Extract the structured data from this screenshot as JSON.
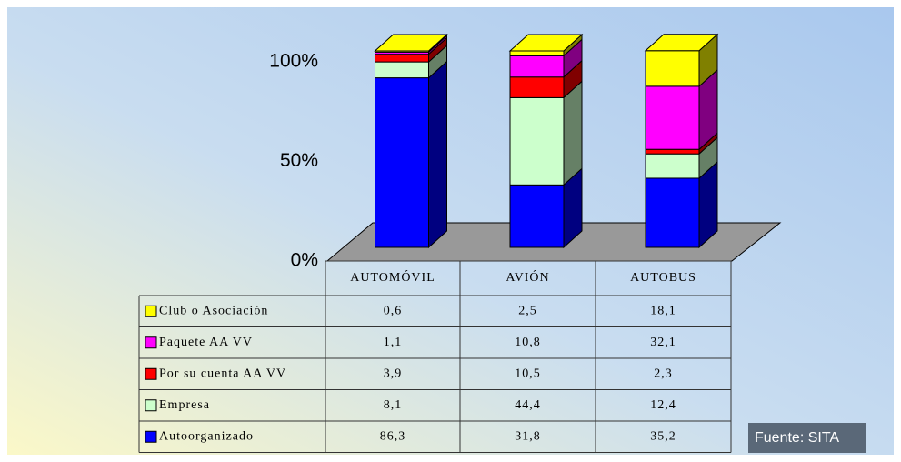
{
  "chart_data": {
    "type": "bar3d-stacked",
    "categories": [
      "AUTOMÓVIL",
      "AVIÓN",
      "AUTOBUS"
    ],
    "series": [
      {
        "name": "Autoorganizado",
        "color": "#0000ff",
        "values": [
          86.3,
          31.8,
          35.2
        ],
        "value_labels": [
          "86,3",
          "31,8",
          "35,2"
        ]
      },
      {
        "name": "Empresa",
        "color": "#ccffcc",
        "values": [
          8.1,
          44.4,
          12.4
        ],
        "value_labels": [
          "8,1",
          "44,4",
          "12,4"
        ]
      },
      {
        "name": "Por su cuenta AA VV",
        "color": "#ff0000",
        "values": [
          3.9,
          10.5,
          2.3
        ],
        "value_labels": [
          "3,9",
          "10,5",
          "2,3"
        ]
      },
      {
        "name": "Paquete AA VV",
        "color": "#ff00ff",
        "values": [
          1.1,
          10.8,
          32.1
        ],
        "value_labels": [
          "1,1",
          "10,8",
          "32,1"
        ]
      },
      {
        "name": "Club o Asociación",
        "color": "#ffff00",
        "values": [
          0.6,
          2.5,
          18.1
        ],
        "value_labels": [
          "0,6",
          "2,5",
          "18,1"
        ]
      }
    ],
    "ylim": [
      0,
      100
    ],
    "yticks": [
      {
        "value": 0,
        "label": "0%"
      },
      {
        "value": 50,
        "label": "50%"
      },
      {
        "value": 100,
        "label": "100%"
      }
    ],
    "source": "Fuente: SITA"
  }
}
